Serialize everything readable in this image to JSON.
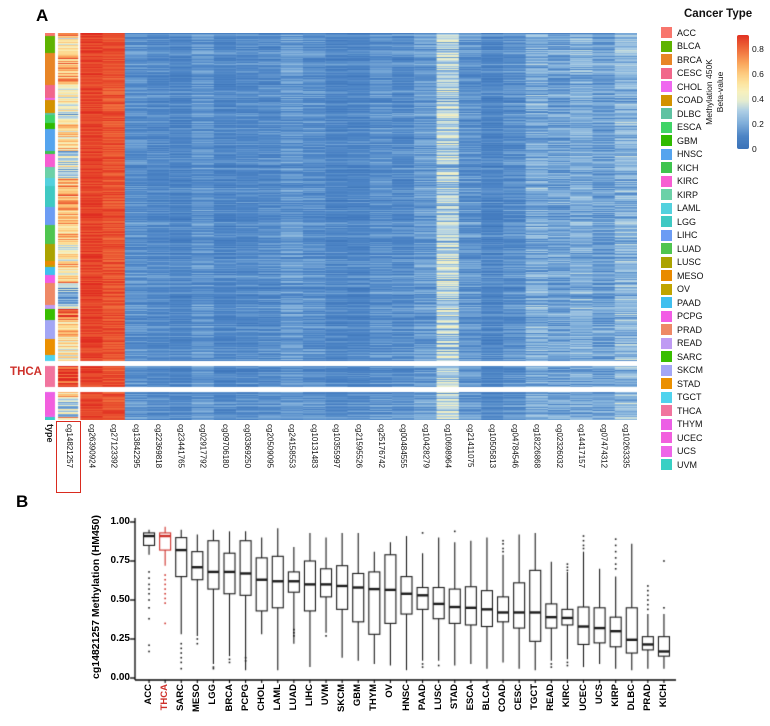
{
  "ui": {
    "panel_a_label": "A",
    "panel_b_label": "B",
    "thca_callout": "THCA",
    "type_axis_label": "type",
    "legend_title": "Cancer Type",
    "highlight_color": "#ce312b",
    "colorbar": {
      "line1": "Methylation 450K",
      "line2": "Beta-value",
      "ticks": [
        "0.8",
        "0.6",
        "0.4",
        "0.2",
        "0"
      ],
      "tick_values": [
        0.8,
        0.6,
        0.4,
        0.2,
        0
      ],
      "max": 0.9
    }
  },
  "chart_data": [
    {
      "id": "panel_a",
      "type": "heatmap",
      "x_labels": [
        "cg14821257",
        "cg26390924",
        "cg27123392",
        "cg13842295",
        "cg22369818",
        "cg23441765",
        "cg02917792",
        "cg09706180",
        "cg03369250",
        "cg20509095",
        "cg24158553",
        "cg10131483",
        "cg10355997",
        "cg21595526",
        "cg25176742",
        "cg00484555",
        "cg10428279",
        "cg10698964",
        "cg21411075",
        "cg10505813",
        "cg04784546",
        "cg18226868",
        "cg02326032",
        "cg14417157",
        "cg07474312",
        "cg10263335"
      ],
      "highlighted_x": "cg14821257",
      "separated_group": "THCA",
      "row_groups": [
        {
          "name": "ACC",
          "color": "#f8766d",
          "n": 80
        },
        {
          "name": "BLCA",
          "color": "#5eb300",
          "n": 418
        },
        {
          "name": "BRCA",
          "color": "#e88526",
          "n": 790
        },
        {
          "name": "CESC",
          "color": "#f1678b",
          "n": 307
        },
        {
          "name": "CHOL",
          "color": "#ef67ef",
          "n": 36
        },
        {
          "name": "COAD",
          "color": "#d39200",
          "n": 313
        },
        {
          "name": "DLBC",
          "color": "#5ec2a2",
          "n": 48
        },
        {
          "name": "ESCA",
          "color": "#3fd467",
          "n": 185
        },
        {
          "name": "GBM",
          "color": "#2fba00",
          "n": 153
        },
        {
          "name": "HNSC",
          "color": "#55a4ee",
          "n": 528
        },
        {
          "name": "KICH",
          "color": "#3ec44e",
          "n": 66
        },
        {
          "name": "KIRC",
          "color": "#f75ed2",
          "n": 320
        },
        {
          "name": "KIRP",
          "color": "#6cd1a8",
          "n": 275
        },
        {
          "name": "LAML",
          "color": "#53d1de",
          "n": 194
        },
        {
          "name": "LGG",
          "color": "#3fc9c3",
          "n": 516
        },
        {
          "name": "LIHC",
          "color": "#6c9cf4",
          "n": 430
        },
        {
          "name": "LUAD",
          "color": "#4fc54f",
          "n": 475
        },
        {
          "name": "LUSC",
          "color": "#aba300",
          "n": 412
        },
        {
          "name": "MESO",
          "color": "#e98a00",
          "n": 87
        },
        {
          "name": "OV",
          "color": "#c0a400",
          "n": 30
        },
        {
          "name": "PAAD",
          "color": "#3fbfef",
          "n": 195
        },
        {
          "name": "PCPG",
          "color": "#f25ce5",
          "n": 184
        },
        {
          "name": "PRAD",
          "color": "#ee8866",
          "n": 549
        },
        {
          "name": "READ",
          "color": "#bf9bf3",
          "n": 106
        },
        {
          "name": "SARC",
          "color": "#39be00",
          "n": 269
        },
        {
          "name": "SKCM",
          "color": "#a3a6f5",
          "n": 475
        },
        {
          "name": "STAD",
          "color": "#eb9000",
          "n": 398
        },
        {
          "name": "TGCT",
          "color": "#4fd3ee",
          "n": 156
        },
        {
          "name": "THCA",
          "color": "#f1749e",
          "n": 515
        },
        {
          "name": "THYM",
          "color": "#ec5fe5",
          "n": 126
        },
        {
          "name": "UCEC",
          "color": "#f25fde",
          "n": 439
        },
        {
          "name": "UCS",
          "color": "#ee66e8",
          "n": 57
        },
        {
          "name": "UVM",
          "color": "#38d0c4",
          "n": 80
        }
      ],
      "column_betas": [
        {
          "probe": "cg14821257",
          "beta": "per-group",
          "spread": 0.2
        },
        {
          "probe": "cg26390924",
          "beta": 0.87,
          "spread": 0.05
        },
        {
          "probe": "cg27123392",
          "beta": 0.84,
          "spread": 0.06
        },
        {
          "probe": "cg13842295",
          "beta": 0.13,
          "spread": 0.05
        },
        {
          "probe": "cg22369818",
          "beta": 0.11,
          "spread": 0.04
        },
        {
          "probe": "cg23441765",
          "beta": 0.1,
          "spread": 0.04
        },
        {
          "probe": "cg02917792",
          "beta": 0.14,
          "spread": 0.05
        },
        {
          "probe": "cg09706180",
          "beta": 0.1,
          "spread": 0.04
        },
        {
          "probe": "cg03369250",
          "beta": 0.11,
          "spread": 0.04
        },
        {
          "probe": "cg20509095",
          "beta": 0.12,
          "spread": 0.05
        },
        {
          "probe": "cg24158553",
          "beta": 0.15,
          "spread": 0.06
        },
        {
          "probe": "cg10131483",
          "beta": 0.13,
          "spread": 0.05
        },
        {
          "probe": "cg10355997",
          "beta": 0.1,
          "spread": 0.04
        },
        {
          "probe": "cg21595526",
          "beta": 0.1,
          "spread": 0.04
        },
        {
          "probe": "cg25176742",
          "beta": 0.13,
          "spread": 0.05
        },
        {
          "probe": "cg00484555",
          "beta": 0.12,
          "spread": 0.05
        },
        {
          "probe": "cg10428279",
          "beta": 0.16,
          "spread": 0.06
        },
        {
          "probe": "cg10698964",
          "beta": 0.3,
          "spread": 0.14
        },
        {
          "probe": "cg21411075",
          "beta": 0.14,
          "spread": 0.06
        },
        {
          "probe": "cg10505813",
          "beta": 0.1,
          "spread": 0.04
        },
        {
          "probe": "cg04784546",
          "beta": 0.13,
          "spread": 0.05
        },
        {
          "probe": "cg18226868",
          "beta": 0.2,
          "spread": 0.09
        },
        {
          "probe": "cg02326032",
          "beta": 0.18,
          "spread": 0.08
        },
        {
          "probe": "cg14417157",
          "beta": 0.21,
          "spread": 0.09
        },
        {
          "probe": "cg07474312",
          "beta": 0.17,
          "spread": 0.07
        },
        {
          "probe": "cg10263335",
          "beta": 0.23,
          "spread": 0.1
        }
      ],
      "colormap_stops": [
        [
          0.0,
          "#3b73b9"
        ],
        [
          0.1,
          "#4d85c6"
        ],
        [
          0.2,
          "#7faeda"
        ],
        [
          0.3,
          "#aecfe5"
        ],
        [
          0.38,
          "#e6edd0"
        ],
        [
          0.45,
          "#f8f1be"
        ],
        [
          0.52,
          "#fde59f"
        ],
        [
          0.6,
          "#fdc97e"
        ],
        [
          0.68,
          "#faa55c"
        ],
        [
          0.76,
          "#f37b44"
        ],
        [
          0.85,
          "#e84e2e"
        ],
        [
          0.92,
          "#df2a20"
        ]
      ]
    },
    {
      "id": "panel_b",
      "type": "box",
      "ylabel": "cg14821257 Methylation (HM450)",
      "ylim": [
        0,
        1
      ],
      "yticks": [
        "1.00",
        "0.75",
        "0.50",
        "0.25",
        "0.00"
      ],
      "ytick_values": [
        1.0,
        0.75,
        0.5,
        0.25,
        0
      ],
      "highlight": "THCA",
      "series": [
        {
          "name": "ACC",
          "low": 0.79,
          "q1": 0.85,
          "median": 0.91,
          "q3": 0.93,
          "high": 0.95,
          "outliers": [
            0.68,
            0.64,
            0.6,
            0.57,
            0.54,
            0.5,
            0.45,
            0.38,
            0.21,
            0.17
          ]
        },
        {
          "name": "THCA",
          "low": 0.72,
          "q1": 0.82,
          "median": 0.91,
          "q3": 0.93,
          "high": 0.97,
          "outliers": [
            0.66,
            0.63,
            0.6,
            0.57,
            0.54,
            0.51,
            0.48,
            0.35
          ]
        },
        {
          "name": "SARC",
          "low": 0.28,
          "q1": 0.65,
          "median": 0.82,
          "q3": 0.9,
          "high": 0.95,
          "outliers": [
            0.22,
            0.19,
            0.16,
            0.13,
            0.1,
            0.06
          ]
        },
        {
          "name": "MESO",
          "low": 0.27,
          "q1": 0.63,
          "median": 0.71,
          "q3": 0.81,
          "high": 0.92,
          "outliers": [
            0.25,
            0.22
          ]
        },
        {
          "name": "LGG",
          "low": 0.09,
          "q1": 0.57,
          "median": 0.68,
          "q3": 0.88,
          "high": 0.95,
          "outliers": [
            0.07,
            0.06
          ]
        },
        {
          "name": "BRCA",
          "low": 0.14,
          "q1": 0.54,
          "median": 0.68,
          "q3": 0.8,
          "high": 0.94,
          "outliers": [
            0.12,
            0.1
          ]
        },
        {
          "name": "PCPG",
          "low": 0.05,
          "q1": 0.53,
          "median": 0.67,
          "q3": 0.88,
          "high": 0.94,
          "outliers": [
            0.13,
            0.11
          ]
        },
        {
          "name": "CHOL",
          "low": 0.28,
          "q1": 0.43,
          "median": 0.63,
          "q3": 0.77,
          "high": 0.9,
          "outliers": []
        },
        {
          "name": "LAML",
          "low": 0.05,
          "q1": 0.45,
          "median": 0.62,
          "q3": 0.78,
          "high": 0.96,
          "outliers": []
        },
        {
          "name": "LUAD",
          "low": 0.22,
          "q1": 0.55,
          "median": 0.62,
          "q3": 0.68,
          "high": 0.84,
          "outliers": [
            0.31,
            0.29,
            0.27
          ]
        },
        {
          "name": "LIHC",
          "low": 0.07,
          "q1": 0.43,
          "median": 0.6,
          "q3": 0.75,
          "high": 0.93,
          "outliers": []
        },
        {
          "name": "UVM",
          "low": 0.29,
          "q1": 0.52,
          "median": 0.6,
          "q3": 0.7,
          "high": 0.9,
          "outliers": [
            0.27
          ]
        },
        {
          "name": "SKCM",
          "low": 0.13,
          "q1": 0.44,
          "median": 0.59,
          "q3": 0.72,
          "high": 0.93,
          "outliers": []
        },
        {
          "name": "GBM",
          "low": 0.11,
          "q1": 0.36,
          "median": 0.58,
          "q3": 0.67,
          "high": 0.93,
          "outliers": []
        },
        {
          "name": "THYM",
          "low": 0.09,
          "q1": 0.28,
          "median": 0.57,
          "q3": 0.68,
          "high": 0.81,
          "outliers": []
        },
        {
          "name": "OV",
          "low": 0.08,
          "q1": 0.35,
          "median": 0.565,
          "q3": 0.79,
          "high": 0.87,
          "outliers": []
        },
        {
          "name": "HNSC",
          "low": 0.05,
          "q1": 0.41,
          "median": 0.54,
          "q3": 0.65,
          "high": 0.91,
          "outliers": []
        },
        {
          "name": "PAAD",
          "low": 0.11,
          "q1": 0.44,
          "median": 0.53,
          "q3": 0.58,
          "high": 0.8,
          "outliers": [
            0.93,
            0.09,
            0.07
          ]
        },
        {
          "name": "LUSC",
          "low": 0.11,
          "q1": 0.38,
          "median": 0.475,
          "q3": 0.58,
          "high": 0.9,
          "outliers": [
            0.08
          ]
        },
        {
          "name": "STAD",
          "low": 0.08,
          "q1": 0.35,
          "median": 0.455,
          "q3": 0.57,
          "high": 0.87,
          "outliers": [
            0.94
          ]
        },
        {
          "name": "ESCA",
          "low": 0.09,
          "q1": 0.34,
          "median": 0.45,
          "q3": 0.585,
          "high": 0.88,
          "outliers": []
        },
        {
          "name": "BLCA",
          "low": 0.06,
          "q1": 0.33,
          "median": 0.44,
          "q3": 0.56,
          "high": 0.9,
          "outliers": []
        },
        {
          "name": "COAD",
          "low": 0.1,
          "q1": 0.36,
          "median": 0.42,
          "q3": 0.52,
          "high": 0.79,
          "outliers": [
            0.88,
            0.86,
            0.83,
            0.81
          ]
        },
        {
          "name": "CESC",
          "low": 0.06,
          "q1": 0.32,
          "median": 0.42,
          "q3": 0.61,
          "high": 0.92,
          "outliers": []
        },
        {
          "name": "TGCT",
          "low": 0.05,
          "q1": 0.235,
          "median": 0.42,
          "q3": 0.69,
          "high": 0.93,
          "outliers": []
        },
        {
          "name": "READ",
          "low": 0.11,
          "q1": 0.32,
          "median": 0.39,
          "q3": 0.475,
          "high": 0.745,
          "outliers": [
            0.09,
            0.07
          ]
        },
        {
          "name": "KIRC",
          "low": 0.12,
          "q1": 0.34,
          "median": 0.385,
          "q3": 0.44,
          "high": 0.68,
          "outliers": [
            0.73,
            0.71,
            0.69,
            0.1,
            0.08
          ]
        },
        {
          "name": "UCEC",
          "low": 0.07,
          "q1": 0.215,
          "median": 0.33,
          "q3": 0.455,
          "high": 0.81,
          "outliers": [
            0.91,
            0.88,
            0.85,
            0.83
          ]
        },
        {
          "name": "UCS",
          "low": 0.09,
          "q1": 0.225,
          "median": 0.32,
          "q3": 0.45,
          "high": 0.7,
          "outliers": []
        },
        {
          "name": "KIRP",
          "low": 0.06,
          "q1": 0.2,
          "median": 0.3,
          "q3": 0.39,
          "high": 0.65,
          "outliers": [
            0.89,
            0.85,
            0.81,
            0.77,
            0.73,
            0.7
          ]
        },
        {
          "name": "DLBC",
          "low": 0.05,
          "q1": 0.16,
          "median": 0.245,
          "q3": 0.45,
          "high": 0.86,
          "outliers": []
        },
        {
          "name": "PRAD",
          "low": 0.06,
          "q1": 0.18,
          "median": 0.215,
          "q3": 0.265,
          "high": 0.41,
          "outliers": [
            0.59,
            0.56,
            0.53,
            0.5,
            0.47,
            0.44
          ]
        },
        {
          "name": "KICH",
          "low": 0.06,
          "q1": 0.14,
          "median": 0.17,
          "q3": 0.265,
          "high": 0.41,
          "outliers": [
            0.75,
            0.45
          ]
        }
      ]
    }
  ]
}
